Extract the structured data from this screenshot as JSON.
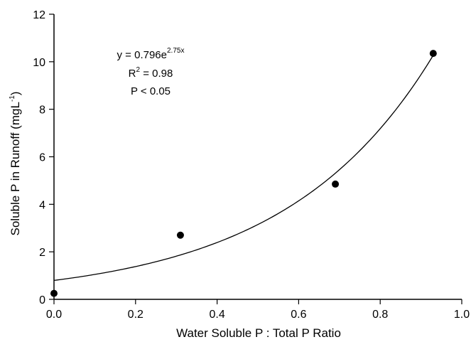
{
  "chart_data": {
    "type": "scatter",
    "xlabel": "Water Soluble P : Total P Ratio",
    "ylabel": {
      "main": "Soluble P in Runoff (mgL",
      "sup": "-1",
      "close": ")"
    },
    "xlim": [
      0,
      1.0
    ],
    "ylim": [
      0,
      12
    ],
    "x_ticks": [
      "0.0",
      "0.2",
      "0.4",
      "0.6",
      "0.8",
      "1.0"
    ],
    "x_tick_values": [
      0,
      0.2,
      0.4,
      0.6,
      0.8,
      1.0
    ],
    "y_ticks": [
      "0",
      "2",
      "4",
      "6",
      "8",
      "10",
      "12"
    ],
    "y_tick_values": [
      0,
      2,
      4,
      6,
      8,
      10,
      12
    ],
    "grid": false,
    "points": [
      {
        "x": 0.0,
        "y": 0.25
      },
      {
        "x": 0.31,
        "y": 2.7
      },
      {
        "x": 0.69,
        "y": 4.85
      },
      {
        "x": 0.93,
        "y": 10.35
      }
    ],
    "fit": {
      "model": "exponential",
      "a": 0.796,
      "b": 2.75,
      "x_range": [
        0,
        0.93
      ]
    },
    "annotations": {
      "equation": {
        "base": "y = 0.796e",
        "exp": "2.75x"
      },
      "r2": {
        "label": "R",
        "sup": "2",
        "value": " = 0.98"
      },
      "p": "P < 0.05"
    }
  }
}
